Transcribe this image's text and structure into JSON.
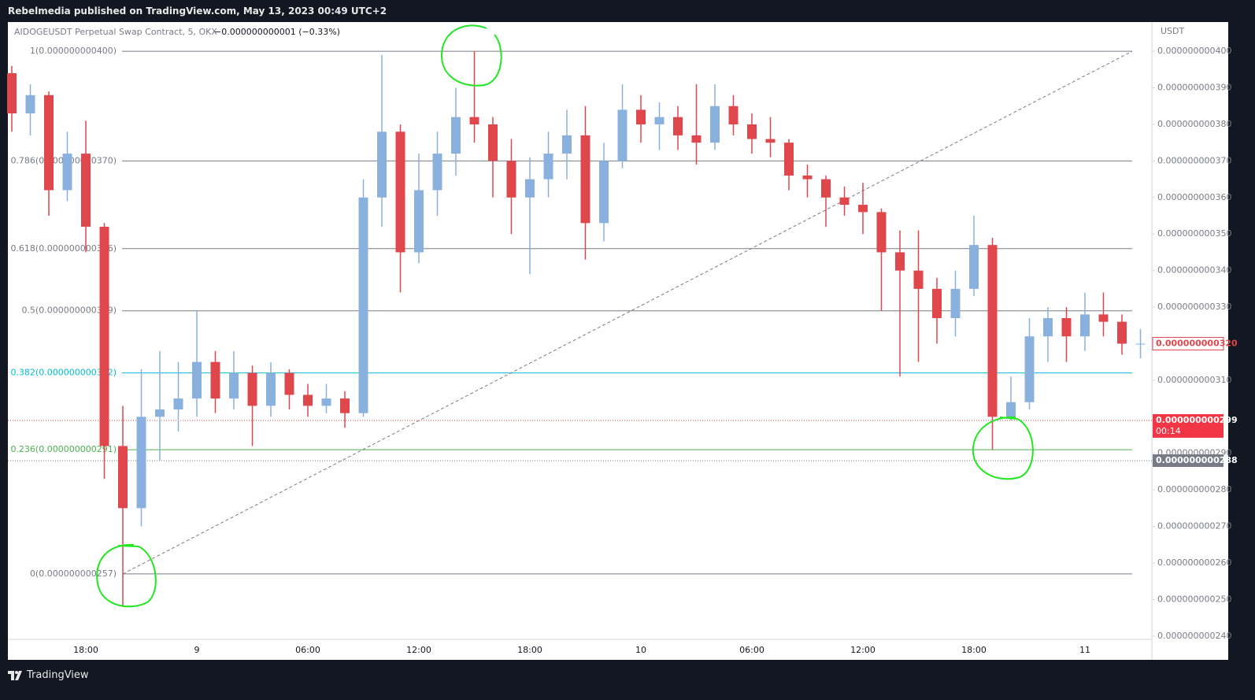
{
  "header": {
    "publisher": "Rebelmedia published on TradingView.com, May 13, 2023 00:49 UTC+2"
  },
  "footer": {
    "brand": "TradingView"
  },
  "chart_data": {
    "type": "candlestick",
    "symbol": "AIDOGEUSDT Perpetual Swap Contract, 5, OKX",
    "change": "−0.000000000001 (−0.33%)",
    "axis_unit": "USDT",
    "up_color": "#8ab0de",
    "down_color": "#e0474c",
    "categories": [
      null,
      null,
      null,
      null,
      "18:00",
      null,
      null,
      null,
      null,
      null,
      "9",
      null,
      null,
      null,
      null,
      null,
      "06:00",
      null,
      null,
      null,
      null,
      null,
      "12:00",
      null,
      null,
      null,
      null,
      null,
      "18:00",
      null,
      null,
      null,
      null,
      null,
      "10",
      null,
      null,
      null,
      null,
      null,
      "06:00",
      null,
      null,
      null,
      null,
      null,
      "12:00",
      null,
      null,
      null,
      null,
      null,
      "18:00",
      null,
      null,
      null,
      null,
      null,
      "11",
      null,
      null,
      null
    ],
    "open": [
      3.94e-10,
      3.83e-10,
      3.88e-10,
      3.62e-10,
      3.72e-10,
      3.52e-10,
      2.92e-10,
      2.75e-10,
      3e-10,
      3.02e-10,
      3.05e-10,
      3.15e-10,
      3.05e-10,
      3.12e-10,
      3.03e-10,
      3.12e-10,
      3.06e-10,
      3.03e-10,
      3.05e-10,
      3.01e-10,
      3.6e-10,
      3.78e-10,
      3.45e-10,
      3.62e-10,
      3.72e-10,
      3.82e-10,
      3.8e-10,
      3.7e-10,
      3.6e-10,
      3.65e-10,
      3.72e-10,
      3.77e-10,
      3.53e-10,
      3.7e-10,
      3.84e-10,
      3.8e-10,
      3.82e-10,
      3.77e-10,
      3.75e-10,
      3.85e-10,
      3.8e-10,
      3.76e-10,
      3.75e-10,
      3.66e-10,
      3.65e-10,
      3.6e-10,
      3.58e-10,
      3.56e-10,
      3.45e-10,
      3.4e-10,
      3.35e-10,
      3.27e-10,
      3.35e-10,
      3.47e-10,
      3e-10,
      3.04e-10,
      3.22e-10,
      3.27e-10,
      3.22e-10,
      3.28e-10,
      3.26e-10,
      3.2e-10
    ],
    "high": [
      3.96e-10,
      3.91e-10,
      3.89e-10,
      3.78e-10,
      3.81e-10,
      3.53e-10,
      3.03e-10,
      3.13e-10,
      3.18e-10,
      3.15e-10,
      3.29e-10,
      3.18e-10,
      3.18e-10,
      3.14e-10,
      3.15e-10,
      3.13e-10,
      3.09e-10,
      3.09e-10,
      3.07e-10,
      3.65e-10,
      3.99e-10,
      3.8e-10,
      3.72e-10,
      3.78e-10,
      3.9e-10,
      4e-10,
      3.82e-10,
      3.76e-10,
      3.71e-10,
      3.78e-10,
      3.84e-10,
      3.85e-10,
      3.75e-10,
      3.91e-10,
      3.88e-10,
      3.86e-10,
      3.85e-10,
      3.91e-10,
      3.91e-10,
      3.88e-10,
      3.83e-10,
      3.82e-10,
      3.76e-10,
      3.69e-10,
      3.66e-10,
      3.63e-10,
      3.64e-10,
      3.57e-10,
      3.51e-10,
      3.51e-10,
      3.38e-10,
      3.4e-10,
      3.55e-10,
      3.49e-10,
      3.11e-10,
      3.27e-10,
      3.3e-10,
      3.3e-10,
      3.34e-10,
      3.34e-10,
      3.28e-10,
      3.24e-10
    ],
    "low": [
      3.78e-10,
      3.77e-10,
      3.55e-10,
      3.59e-10,
      3.45e-10,
      2.83e-10,
      2.48e-10,
      2.7e-10,
      2.88e-10,
      2.96e-10,
      3e-10,
      3.01e-10,
      3.02e-10,
      2.92e-10,
      3e-10,
      3.02e-10,
      3e-10,
      3.01e-10,
      2.97e-10,
      3e-10,
      3.52e-10,
      3.34e-10,
      3.42e-10,
      3.55e-10,
      3.66e-10,
      3.75e-10,
      3.6e-10,
      3.5e-10,
      3.39e-10,
      3.6e-10,
      3.65e-10,
      3.43e-10,
      3.48e-10,
      3.68e-10,
      3.75e-10,
      3.73e-10,
      3.73e-10,
      3.69e-10,
      3.73e-10,
      3.77e-10,
      3.72e-10,
      3.71e-10,
      3.62e-10,
      3.6e-10,
      3.52e-10,
      3.55e-10,
      3.5e-10,
      3.29e-10,
      3.11e-10,
      3.15e-10,
      3.2e-10,
      3.22e-10,
      3.33e-10,
      2.91e-10,
      2.99e-10,
      3.02e-10,
      3.15e-10,
      3.15e-10,
      3.18e-10,
      3.22e-10,
      3.17e-10,
      3.16e-10
    ],
    "close": [
      3.83e-10,
      3.88e-10,
      3.62e-10,
      3.72e-10,
      3.52e-10,
      2.92e-10,
      2.75e-10,
      3e-10,
      3.02e-10,
      3.05e-10,
      3.15e-10,
      3.05e-10,
      3.12e-10,
      3.03e-10,
      3.12e-10,
      3.06e-10,
      3.03e-10,
      3.05e-10,
      3.01e-10,
      3.6e-10,
      3.78e-10,
      3.45e-10,
      3.62e-10,
      3.72e-10,
      3.82e-10,
      3.8e-10,
      3.7e-10,
      3.6e-10,
      3.65e-10,
      3.72e-10,
      3.77e-10,
      3.53e-10,
      3.7e-10,
      3.84e-10,
      3.8e-10,
      3.82e-10,
      3.77e-10,
      3.75e-10,
      3.85e-10,
      3.8e-10,
      3.76e-10,
      3.75e-10,
      3.66e-10,
      3.65e-10,
      3.6e-10,
      3.58e-10,
      3.56e-10,
      3.45e-10,
      3.4e-10,
      3.35e-10,
      3.27e-10,
      3.35e-10,
      3.47e-10,
      3e-10,
      3.04e-10,
      3.22e-10,
      3.27e-10,
      3.22e-10,
      3.28e-10,
      3.26e-10,
      3.2e-10,
      3.2e-10
    ],
    "ylim": [
      2.391e-10,
      4.08e-10
    ],
    "yticks": [
      {
        "value": 4e-10,
        "label": "0.000000000400"
      },
      {
        "value": 3.9e-10,
        "label": "0.000000000390"
      },
      {
        "value": 3.8e-10,
        "label": "0.000000000380"
      },
      {
        "value": 3.7e-10,
        "label": "0.000000000370"
      },
      {
        "value": 3.6e-10,
        "label": "0.000000000360"
      },
      {
        "value": 3.5e-10,
        "label": "0.000000000350"
      },
      {
        "value": 3.4e-10,
        "label": "0.000000000340"
      },
      {
        "value": 3.3e-10,
        "label": "0.000000000330"
      },
      {
        "value": 3.1e-10,
        "label": "0.000000000310"
      },
      {
        "value": 2.9e-10,
        "label": "0.000000000290"
      },
      {
        "value": 2.8e-10,
        "label": "0.000000000280"
      },
      {
        "value": 2.7e-10,
        "label": "0.000000000270"
      },
      {
        "value": 2.6e-10,
        "label": "0.000000000260"
      },
      {
        "value": 2.5e-10,
        "label": "0.000000000250"
      },
      {
        "value": 2.4e-10,
        "label": "0.000000000240"
      }
    ],
    "fib_levels": [
      {
        "label": "1(0.000000000400)",
        "value": 4e-10,
        "color": "#787b86"
      },
      {
        "label": "0.786(0.000000000370)",
        "value": 3.7e-10,
        "color": "#787b86"
      },
      {
        "label": "0.618(0.000000000346)",
        "value": 3.46e-10,
        "color": "#787b86"
      },
      {
        "label": "0.5(0.000000000329)",
        "value": 3.29e-10,
        "color": "#787b86"
      },
      {
        "label": "0.382(0.000000000312)",
        "value": 3.12e-10,
        "color": "#00bcd4"
      },
      {
        "label": "0.236(0.000000000291)",
        "value": 2.91e-10,
        "color": "#4caf50"
      },
      {
        "label": "0(0.000000000257)",
        "value": 2.57e-10,
        "color": "#787b86"
      }
    ],
    "trend_line": {
      "start": 2.57e-10,
      "end": 4e-10
    },
    "last_price": {
      "value": 3.2e-10,
      "label": "0.000000000320"
    },
    "bid_price": {
      "value": 2.99e-10,
      "label": "0.000000000299",
      "countdown": "00:14"
    },
    "low_price": {
      "value": 2.88e-10,
      "label": "0.000000000288"
    }
  }
}
